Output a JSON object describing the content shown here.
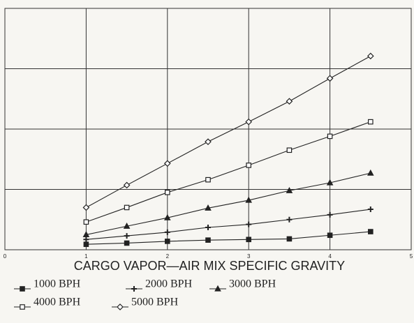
{
  "chart_data": {
    "type": "line",
    "x_label": "CARGO VAPOR—AIR MIX SPECIFIC GRAVITY",
    "x": [
      1,
      1.5,
      2,
      2.5,
      3,
      3.5,
      4,
      4.5
    ],
    "series": [
      {
        "name": "1000 BPH",
        "color": "#222222",
        "marker": "filled-square",
        "values": [
          0.09,
          0.11,
          0.14,
          0.16,
          0.17,
          0.18,
          0.24,
          0.3
        ]
      },
      {
        "name": "2000 BPH",
        "color": "#222222",
        "marker": "plus",
        "values": [
          0.17,
          0.23,
          0.29,
          0.37,
          0.42,
          0.5,
          0.58,
          0.67
        ]
      },
      {
        "name": "3000 BPH",
        "color": "#222222",
        "marker": "triangle",
        "values": [
          0.25,
          0.39,
          0.53,
          0.69,
          0.82,
          0.98,
          1.11,
          1.27
        ]
      },
      {
        "name": "4000 BPH",
        "color": "#222222",
        "marker": "open-square",
        "values": [
          0.46,
          0.7,
          0.95,
          1.16,
          1.4,
          1.65,
          1.88,
          2.12
        ]
      },
      {
        "name": "5000 BPH",
        "color": "#222222",
        "marker": "open-diamond",
        "values": [
          0.7,
          1.07,
          1.43,
          1.79,
          2.12,
          2.46,
          2.84,
          3.21
        ]
      }
    ],
    "xlim": [
      0,
      5
    ],
    "xticks": [
      0,
      1,
      2,
      3,
      4,
      5
    ],
    "ylim": [
      0,
      4
    ],
    "yticks": [
      0,
      1,
      2,
      3,
      4
    ],
    "grid": true
  }
}
